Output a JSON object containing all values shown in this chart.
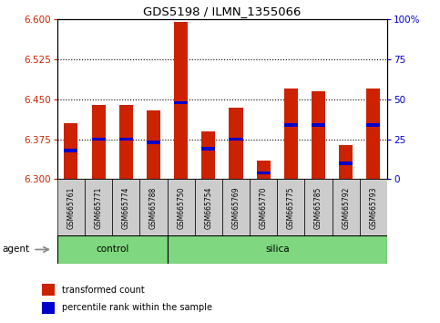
{
  "title": "GDS5198 / ILMN_1355066",
  "samples": [
    "GSM665761",
    "GSM665771",
    "GSM665774",
    "GSM665788",
    "GSM665750",
    "GSM665754",
    "GSM665769",
    "GSM665770",
    "GSM665775",
    "GSM665785",
    "GSM665792",
    "GSM665793"
  ],
  "groups": [
    "control",
    "control",
    "control",
    "control",
    "silica",
    "silica",
    "silica",
    "silica",
    "silica",
    "silica",
    "silica",
    "silica"
  ],
  "transformed_count": [
    6.405,
    6.44,
    6.44,
    6.43,
    6.595,
    6.39,
    6.435,
    6.335,
    6.47,
    6.465,
    6.365,
    6.47
  ],
  "percentile_rank": [
    18,
    25,
    25,
    23,
    48,
    19,
    25,
    4,
    34,
    34,
    10,
    34
  ],
  "ylim": [
    6.3,
    6.6
  ],
  "yticks": [
    6.3,
    6.375,
    6.45,
    6.525,
    6.6
  ],
  "right_yticks": [
    0,
    25,
    50,
    75,
    100
  ],
  "bar_color": "#CC2200",
  "percentile_color": "#0000CC",
  "bar_width": 0.5,
  "background_color": "#ffffff",
  "xlabel_color": "#CC2200",
  "ylabel_right_color": "#0000CC",
  "base_value": 6.3,
  "control_count": 4,
  "total_count": 12,
  "green_color": "#7FD87F"
}
